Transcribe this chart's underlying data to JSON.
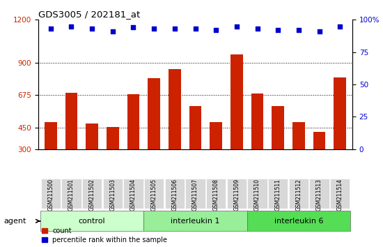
{
  "title": "GDS3005 / 202181_at",
  "categories": [
    "GSM211500",
    "GSM211501",
    "GSM211502",
    "GSM211503",
    "GSM211504",
    "GSM211505",
    "GSM211506",
    "GSM211507",
    "GSM211508",
    "GSM211509",
    "GSM211510",
    "GSM211511",
    "GSM211512",
    "GSM211513",
    "GSM211514"
  ],
  "counts": [
    490,
    690,
    480,
    455,
    680,
    795,
    855,
    600,
    490,
    960,
    685,
    600,
    490,
    420,
    800
  ],
  "percentile_ranks": [
    93,
    95,
    93,
    91,
    94,
    93,
    93,
    93,
    92,
    95,
    93,
    92,
    92,
    91,
    95
  ],
  "bar_color": "#cc2200",
  "dot_color": "#0000cc",
  "ylim_left": [
    300,
    1200
  ],
  "ylim_right": [
    0,
    100
  ],
  "yticks_left": [
    300,
    450,
    675,
    900,
    1200
  ],
  "yticks_right": [
    0,
    25,
    50,
    75,
    100
  ],
  "groups": [
    {
      "label": "control",
      "start": 0,
      "end": 5,
      "color": "#ccffcc"
    },
    {
      "label": "interleukin 1",
      "start": 5,
      "end": 10,
      "color": "#99ee99"
    },
    {
      "label": "interleukin 6",
      "start": 10,
      "end": 15,
      "color": "#55dd55"
    }
  ],
  "agent_label": "agent",
  "legend_count_label": "count",
  "legend_pct_label": "percentile rank within the sample",
  "dotted_lines": [
    450,
    675,
    900
  ],
  "bar_width": 0.6
}
